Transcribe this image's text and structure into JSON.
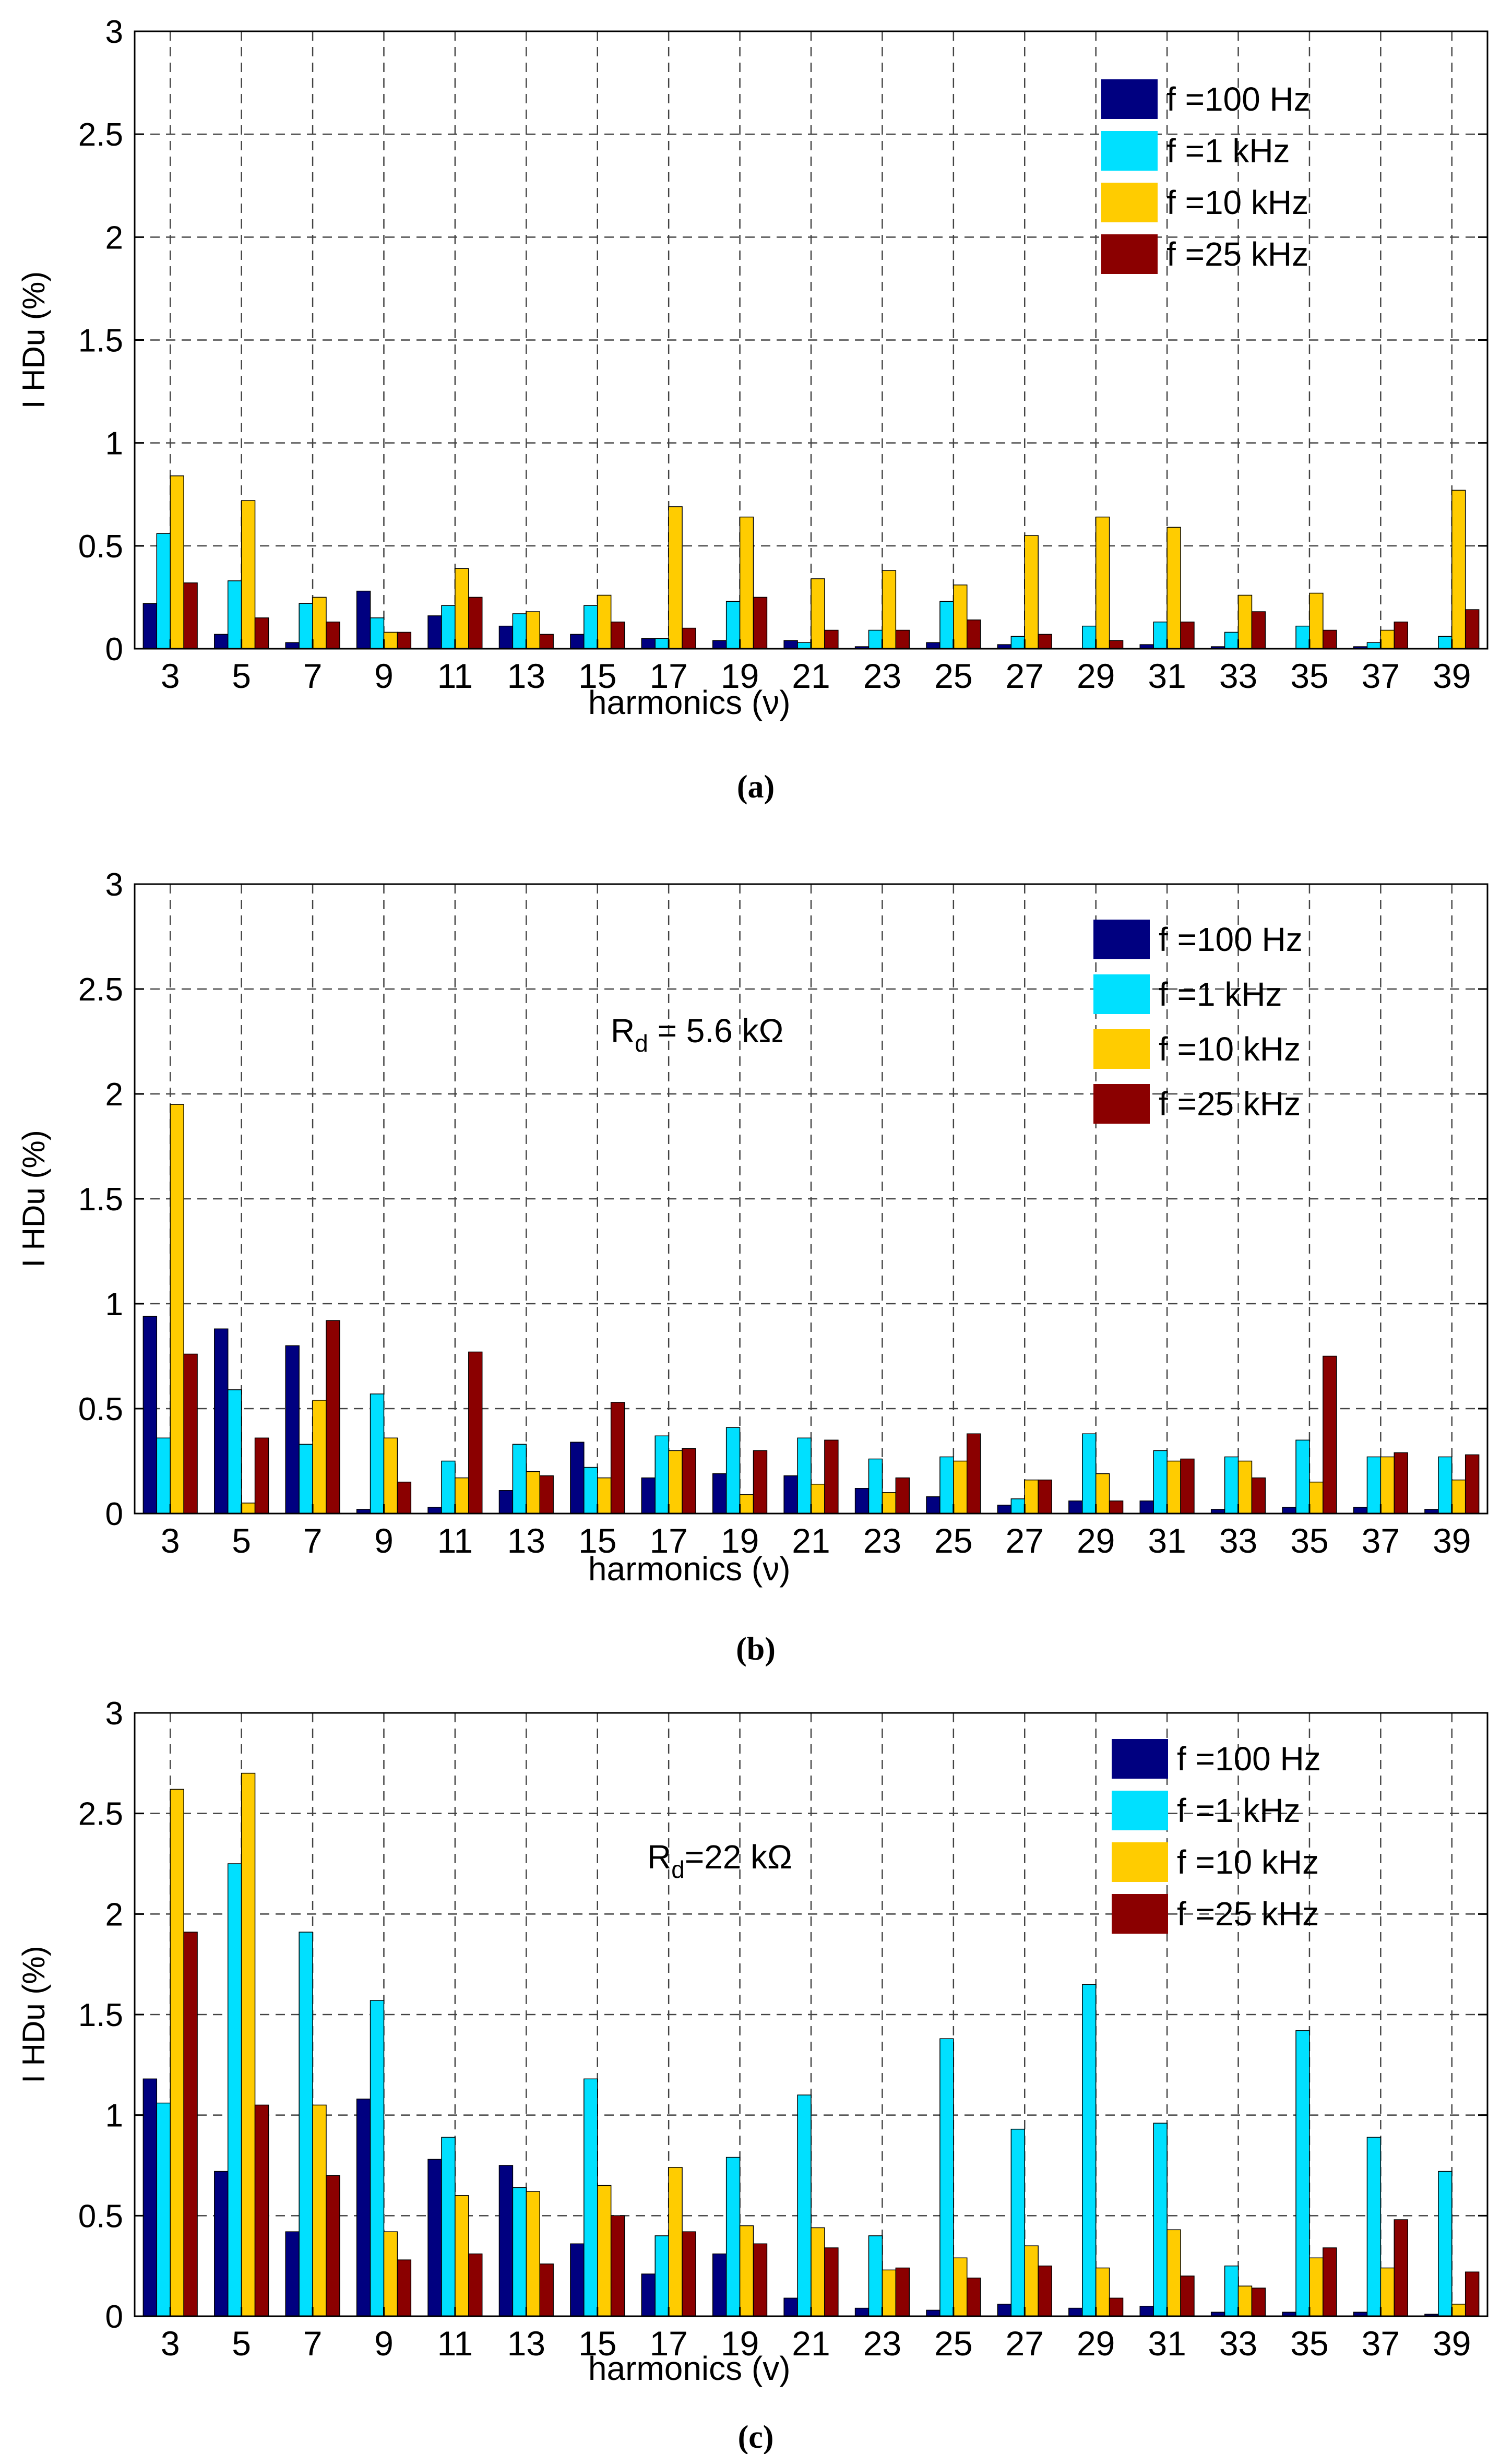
{
  "panels": [
    {
      "label": "(a)",
      "annotation": null
    },
    {
      "label": "(b)",
      "annotation": {
        "main": "R",
        "sub": "d",
        "rest": " = 5.6 kΩ"
      }
    },
    {
      "label": "(c)",
      "annotation": {
        "main": "R",
        "sub": "d",
        "rest": "=22 kΩ"
      }
    }
  ],
  "colors": {
    "s100Hz": "#000080",
    "s1kHz": "#00E0FF",
    "s10kHz": "#FFCC00",
    "s25kHz": "#8B0000"
  },
  "chart_data": [
    {
      "type": "bar",
      "title": "",
      "xlabel": "harmonics   (ν)",
      "ylabel": "I HDu (%)",
      "ylim": [
        0,
        3
      ],
      "yticks": [
        "0",
        "0.5",
        "1",
        "1.5",
        "2",
        "2.5",
        "3"
      ],
      "grid": true,
      "legend_position": "top-right",
      "categories": [
        "3",
        "5",
        "7",
        "9",
        "11",
        "13",
        "15",
        "17",
        "19",
        "21",
        "23",
        "25",
        "27",
        "29",
        "31",
        "33",
        "35",
        "37",
        "39"
      ],
      "series": [
        {
          "name": "f =100 Hz",
          "values": [
            0.22,
            0.07,
            0.03,
            0.28,
            0.16,
            0.11,
            0.07,
            0.05,
            0.04,
            0.04,
            0.01,
            0.03,
            0.02,
            0.0,
            0.02,
            0.01,
            0.0,
            0.01,
            0.0
          ]
        },
        {
          "name": "f =1 kHz",
          "values": [
            0.56,
            0.33,
            0.22,
            0.15,
            0.21,
            0.17,
            0.21,
            0.05,
            0.23,
            0.03,
            0.09,
            0.23,
            0.06,
            0.11,
            0.13,
            0.08,
            0.11,
            0.03,
            0.06
          ]
        },
        {
          "name": "f =10 kHz",
          "values": [
            0.84,
            0.72,
            0.25,
            0.08,
            0.39,
            0.18,
            0.26,
            0.69,
            0.64,
            0.34,
            0.38,
            0.31,
            0.55,
            0.64,
            0.59,
            0.26,
            0.27,
            0.09,
            0.77
          ]
        },
        {
          "name": "f =25 kHz",
          "values": [
            0.32,
            0.15,
            0.13,
            0.08,
            0.25,
            0.07,
            0.13,
            0.1,
            0.25,
            0.09,
            0.09,
            0.14,
            0.07,
            0.04,
            0.13,
            0.18,
            0.09,
            0.13,
            0.19
          ]
        }
      ]
    },
    {
      "type": "bar",
      "title": "",
      "xlabel": "harmonics   (ν)",
      "ylabel": "I HDu (%)",
      "ylim": [
        0,
        3
      ],
      "yticks": [
        "0",
        "0.5",
        "1",
        "1.5",
        "2",
        "2.5",
        "3"
      ],
      "grid": true,
      "legend_position": "top-right",
      "categories": [
        "3",
        "5",
        "7",
        "9",
        "11",
        "13",
        "15",
        "17",
        "19",
        "21",
        "23",
        "25",
        "27",
        "29",
        "31",
        "33",
        "35",
        "37",
        "39"
      ],
      "series": [
        {
          "name": "f =100 Hz",
          "values": [
            0.94,
            0.88,
            0.8,
            0.02,
            0.03,
            0.11,
            0.34,
            0.17,
            0.19,
            0.18,
            0.12,
            0.08,
            0.04,
            0.06,
            0.06,
            0.02,
            0.03,
            0.03,
            0.02
          ]
        },
        {
          "name": "f =1 kHz",
          "values": [
            0.36,
            0.59,
            0.33,
            0.57,
            0.25,
            0.33,
            0.22,
            0.37,
            0.41,
            0.36,
            0.26,
            0.27,
            0.07,
            0.38,
            0.3,
            0.27,
            0.35,
            0.27,
            0.27
          ]
        },
        {
          "name": "f =10 kHz",
          "values": [
            1.95,
            0.05,
            0.54,
            0.36,
            0.17,
            0.2,
            0.17,
            0.3,
            0.09,
            0.14,
            0.1,
            0.25,
            0.16,
            0.19,
            0.25,
            0.25,
            0.15,
            0.27,
            0.16
          ]
        },
        {
          "name": "f =25 kHz",
          "values": [
            0.76,
            0.36,
            0.92,
            0.15,
            0.77,
            0.18,
            0.53,
            0.31,
            0.3,
            0.35,
            0.17,
            0.38,
            0.16,
            0.06,
            0.26,
            0.17,
            0.75,
            0.29,
            0.28
          ]
        }
      ]
    },
    {
      "type": "bar",
      "title": "",
      "xlabel": "harmonics   (v)",
      "ylabel": "I HDu (%)",
      "ylim": [
        0,
        3
      ],
      "yticks": [
        "0",
        "0.5",
        "1",
        "1.5",
        "2",
        "2.5",
        "3"
      ],
      "grid": true,
      "legend_position": "top-right",
      "categories": [
        "3",
        "5",
        "7",
        "9",
        "11",
        "13",
        "15",
        "17",
        "19",
        "21",
        "23",
        "25",
        "27",
        "29",
        "31",
        "33",
        "35",
        "37",
        "39"
      ],
      "series": [
        {
          "name": "f =100 Hz",
          "values": [
            1.18,
            0.72,
            0.42,
            1.08,
            0.78,
            0.75,
            0.36,
            0.21,
            0.31,
            0.09,
            0.04,
            0.03,
            0.06,
            0.04,
            0.05,
            0.02,
            0.02,
            0.02,
            0.01
          ]
        },
        {
          "name": "f =1 kHz",
          "values": [
            1.06,
            2.25,
            1.91,
            1.57,
            0.89,
            0.64,
            1.18,
            0.4,
            0.79,
            1.1,
            0.4,
            1.38,
            0.93,
            1.65,
            0.96,
            0.25,
            1.42,
            0.89,
            0.72
          ]
        },
        {
          "name": "f =10 kHz",
          "values": [
            2.62,
            2.7,
            1.05,
            0.42,
            0.6,
            0.62,
            0.65,
            0.74,
            0.45,
            0.44,
            0.23,
            0.29,
            0.35,
            0.24,
            0.43,
            0.15,
            0.29,
            0.24,
            0.06
          ]
        },
        {
          "name": "f =25 kHz",
          "values": [
            1.91,
            1.05,
            0.7,
            0.28,
            0.31,
            0.26,
            0.5,
            0.42,
            0.36,
            0.34,
            0.24,
            0.19,
            0.25,
            0.09,
            0.2,
            0.14,
            0.34,
            0.48,
            0.22
          ]
        }
      ]
    }
  ]
}
